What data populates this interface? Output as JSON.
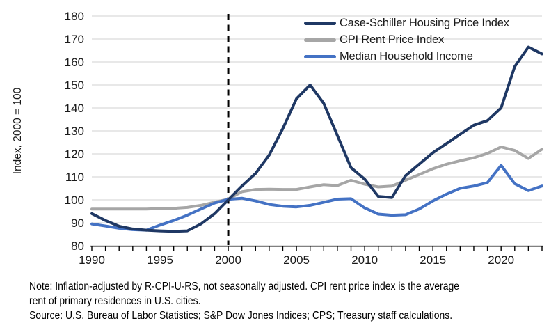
{
  "colors": {
    "case_shiller": "#1F3864",
    "cpi_rent": "#A6A6A6",
    "median_income": "#4472C4",
    "gridline": "#D9D9D9",
    "axis": "#000000",
    "tick_text": "#1a1a1a",
    "reference_line": "#000000"
  },
  "legend": {
    "items": [
      {
        "label": "Case-Schiller Housing Price Index",
        "color_key": "case_shiller"
      },
      {
        "label": "CPI Rent Price Index",
        "color_key": "cpi_rent"
      },
      {
        "label": "Median Household Income",
        "color_key": "median_income"
      }
    ]
  },
  "chart_data": {
    "type": "line",
    "title": "",
    "xlabel": "",
    "ylabel": "Index, 2000 = 100",
    "ylim": [
      80,
      180
    ],
    "y_tick_step": 10,
    "grid": "horizontal",
    "legend_position": "top-right",
    "reference_line_x": 2000,
    "x_label_years": [
      1990,
      1995,
      2000,
      2005,
      2010,
      2015,
      2020
    ],
    "x": [
      1990,
      1991,
      1992,
      1993,
      1994,
      1995,
      1996,
      1997,
      1998,
      1999,
      2000,
      2001,
      2002,
      2003,
      2004,
      2005,
      2006,
      2007,
      2008,
      2009,
      2010,
      2011,
      2012,
      2013,
      2014,
      2015,
      2016,
      2017,
      2018,
      2019,
      2020,
      2021,
      2022,
      2023
    ],
    "series": [
      {
        "name": "Case-Schiller Housing Price Index",
        "color_key": "case_shiller",
        "values": [
          94,
          91,
          88.5,
          87.3,
          86.8,
          86.5,
          86.3,
          86.5,
          89.5,
          94,
          100,
          106,
          111.5,
          119.5,
          131,
          144,
          150,
          142,
          128,
          114,
          109,
          101.5,
          101,
          110.5,
          115.5,
          120.5,
          124.5,
          128.5,
          132.5,
          134.5,
          140,
          158,
          166.5,
          163.5
        ]
      },
      {
        "name": "CPI Rent Price Index",
        "color_key": "cpi_rent",
        "values": [
          96,
          96,
          96,
          96,
          96,
          96.2,
          96.3,
          96.7,
          97.6,
          99,
          100.3,
          103.5,
          104.5,
          104.6,
          104.5,
          104.5,
          105.6,
          106.6,
          106.2,
          108.5,
          106.8,
          105.6,
          106,
          108.5,
          111,
          113.5,
          115.5,
          117,
          118.3,
          120.2,
          123,
          121.5,
          118,
          122
        ]
      },
      {
        "name": "Median Household Income",
        "color_key": "median_income",
        "values": [
          89.5,
          88.6,
          87.6,
          87,
          86.8,
          89,
          91,
          93.3,
          96,
          98.6,
          100.2,
          100.7,
          99.5,
          98,
          97.2,
          96.9,
          97.6,
          98.9,
          100.3,
          100.5,
          96.5,
          93.8,
          93.3,
          93.5,
          96,
          99.5,
          102.5,
          105,
          106,
          107.5,
          115,
          107,
          104,
          106
        ]
      }
    ]
  },
  "notes": {
    "lines": [
      "Note: Inflation-adjusted by R-CPI-U-RS, not seasonally adjusted. CPI rent price index is the average",
      "rent of primary residences in U.S. cities.",
      "Source: U.S. Bureau of Labor Statistics; S&P Dow Jones Indices; CPS; Treasury staff calculations."
    ]
  }
}
